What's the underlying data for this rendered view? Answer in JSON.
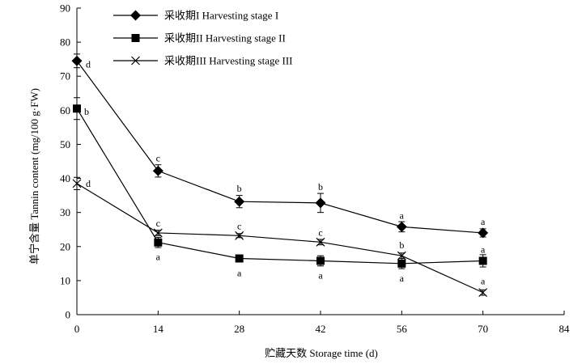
{
  "chart_data": {
    "type": "line",
    "xlabel": "贮藏天数 Storage time (d)",
    "ylabel": "单宁含量 Tannin content (mg/100 g·FW)",
    "xlim": [
      0,
      84
    ],
    "ylim": [
      0,
      90
    ],
    "xticks": [
      0,
      14,
      28,
      42,
      56,
      70,
      84
    ],
    "yticks": [
      0,
      10,
      20,
      30,
      40,
      50,
      60,
      70,
      80,
      90
    ],
    "legend_position": "top-left",
    "x": [
      0,
      14,
      28,
      42,
      56,
      70
    ],
    "series": [
      {
        "name": "采收期I Harvesting stage I",
        "marker": "diamond",
        "values": [
          74.5,
          42.2,
          33.2,
          32.8,
          25.8,
          24.0
        ],
        "errors": [
          2.0,
          1.8,
          1.8,
          2.8,
          1.5,
          1.2
        ],
        "letters": [
          "d",
          "c",
          "b",
          "b",
          "a",
          "a"
        ]
      },
      {
        "name": "采收期II Harvesting stage II",
        "marker": "square",
        "values": [
          60.5,
          21.2,
          16.5,
          15.8,
          15.0,
          15.8
        ],
        "errors": [
          3.2,
          1.5,
          0.8,
          1.5,
          1.5,
          1.8
        ],
        "letters": [
          "b",
          "a",
          "a",
          "a",
          "a",
          "a"
        ]
      },
      {
        "name": "采收期III Harvesting stage III",
        "marker": "cross",
        "values": [
          38.5,
          24.0,
          23.2,
          21.3,
          17.3,
          6.5
        ],
        "errors": [
          1.8,
          0.8,
          0.6,
          0.8,
          0.8,
          0.8
        ],
        "letters": [
          "d",
          "c",
          "c",
          "c",
          "b",
          "a"
        ]
      }
    ]
  }
}
